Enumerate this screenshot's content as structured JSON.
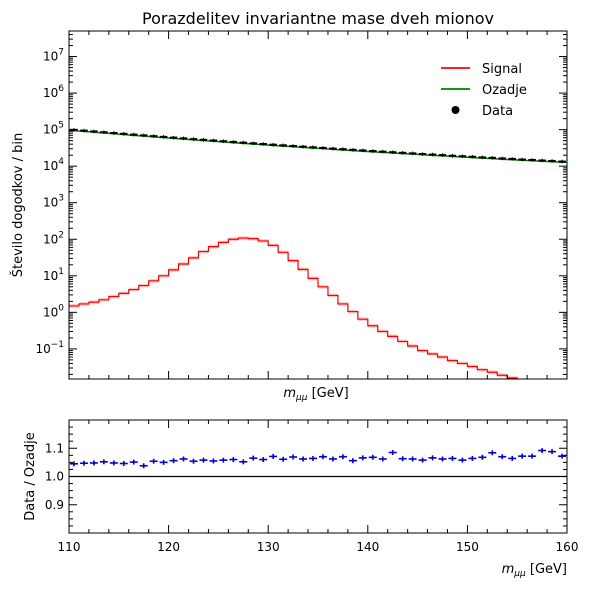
{
  "chart_data": [
    {
      "type": "line",
      "title": "Porazdelitev invariantne mase dveh mionov",
      "xlabel": "m_{μμ} [GeV]",
      "ylabel": "Število dogodkov / bin",
      "xlim": [
        110,
        160
      ],
      "ylim": [
        0.015,
        50000000
      ],
      "yscale": "log",
      "x_ticks_labeled": false,
      "legend": {
        "placement": "top-right",
        "entries": [
          "Signal",
          "Ozadje",
          "Data"
        ]
      },
      "bin_edges": [
        110,
        111,
        112,
        113,
        114,
        115,
        116,
        117,
        118,
        119,
        120,
        121,
        122,
        123,
        124,
        125,
        126,
        127,
        128,
        129,
        130,
        131,
        132,
        133,
        134,
        135,
        136,
        137,
        138,
        139,
        140,
        141,
        142,
        143,
        144,
        145,
        146,
        147,
        148,
        149,
        150,
        151,
        152,
        153,
        154,
        155,
        156,
        157,
        158,
        159,
        160
      ],
      "series": [
        {
          "name": "Signal",
          "color": "#ff0000",
          "style": "step",
          "values": [
            1.5,
            1.7,
            1.9,
            2.2,
            2.7,
            3.3,
            4.2,
            5.4,
            7.3,
            10,
            14.5,
            21,
            31,
            46,
            63,
            82,
            100,
            108,
            104,
            90,
            68,
            44,
            26,
            15,
            8.5,
            5,
            2.9,
            1.7,
            1.05,
            0.65,
            0.43,
            0.3,
            0.22,
            0.16,
            0.12,
            0.09,
            0.073,
            0.06,
            0.048,
            0.04,
            0.033,
            0.027,
            0.023,
            0.019,
            0.016,
            0.0135,
            0.0115,
            0.0098,
            0.0084,
            0.0072
          ]
        },
        {
          "name": "Ozadje",
          "color": "#008000",
          "style": "line",
          "values": [
            94000,
            89500,
            85000,
            80800,
            76900,
            73200,
            69700,
            66400,
            63300,
            60400,
            57600,
            55000,
            52500,
            50200,
            48000,
            45900,
            43900,
            42000,
            40200,
            38500,
            36900,
            35400,
            34000,
            32600,
            31300,
            30100,
            28900,
            27800,
            26700,
            25700,
            24700,
            23800,
            22900,
            22100,
            21300,
            20500,
            19800,
            19100,
            18400,
            17800,
            17200,
            16600,
            16100,
            15500,
            15000,
            14500,
            14100,
            13600,
            13200,
            12800
          ]
        },
        {
          "name": "Data",
          "color": "#000000",
          "style": "points",
          "values": [
            98700,
            94000,
            89300,
            84800,
            80700,
            76900,
            73200,
            69700,
            66500,
            63400,
            60500,
            57800,
            55100,
            52700,
            50400,
            48200,
            46100,
            44100,
            42200,
            40400,
            38700,
            37200,
            35700,
            34200,
            32900,
            31600,
            30300,
            29200,
            28000,
            27000,
            25900,
            25000,
            24100,
            23200,
            22400,
            21500,
            20800,
            20100,
            19300,
            18700,
            18100,
            17400,
            16900,
            16300,
            15800,
            15200,
            14800,
            14300,
            13900,
            13400
          ]
        }
      ]
    },
    {
      "type": "scatter",
      "xlabel": "m_{μμ} [GeV]",
      "ylabel": "Data / Ozadje",
      "xlim": [
        110,
        160
      ],
      "ylim": [
        0.8,
        1.2
      ],
      "yticks": [
        "0.9",
        "1.0",
        "1.1"
      ],
      "xticks": [
        "110",
        "120",
        "130",
        "140",
        "150",
        "160"
      ],
      "reference_line": 1.0,
      "series": [
        {
          "name": "",
          "color": "#0000cc",
          "x": [
            110.5,
            111.5,
            112.5,
            113.5,
            114.5,
            115.5,
            116.5,
            117.5,
            118.5,
            119.5,
            120.5,
            121.5,
            122.5,
            123.5,
            124.5,
            125.5,
            126.5,
            127.5,
            128.5,
            129.5,
            130.5,
            131.5,
            132.5,
            133.5,
            134.5,
            135.5,
            136.5,
            137.5,
            138.5,
            139.5,
            140.5,
            141.5,
            142.5,
            143.5,
            144.5,
            145.5,
            146.5,
            147.5,
            148.5,
            149.5,
            150.5,
            151.5,
            152.5,
            153.5,
            154.5,
            155.5,
            156.5,
            157.5,
            158.5,
            159.5
          ],
          "values": [
            1.045,
            1.047,
            1.048,
            1.052,
            1.048,
            1.046,
            1.051,
            1.038,
            1.054,
            1.05,
            1.056,
            1.062,
            1.054,
            1.058,
            1.055,
            1.058,
            1.06,
            1.052,
            1.065,
            1.06,
            1.071,
            1.061,
            1.069,
            1.062,
            1.064,
            1.07,
            1.062,
            1.07,
            1.056,
            1.066,
            1.068,
            1.062,
            1.085,
            1.063,
            1.062,
            1.058,
            1.066,
            1.062,
            1.064,
            1.058,
            1.064,
            1.068,
            1.084,
            1.07,
            1.064,
            1.072,
            1.072,
            1.092,
            1.088,
            1.072
          ]
        }
      ]
    }
  ]
}
